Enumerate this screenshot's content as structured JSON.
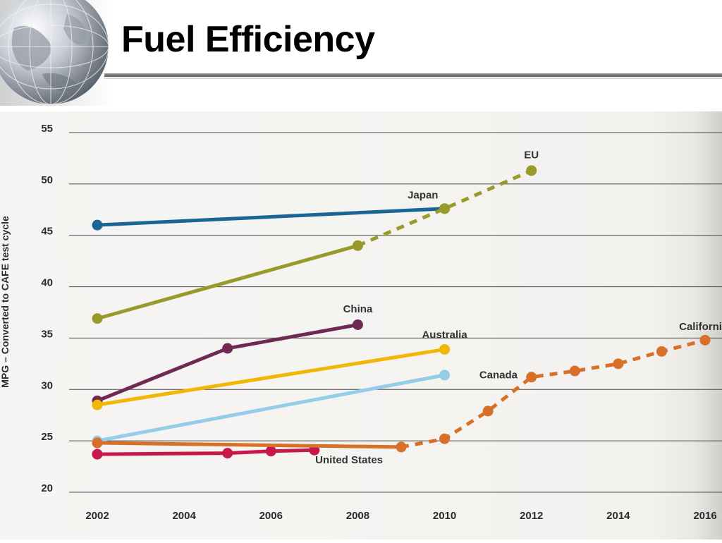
{
  "slide": {
    "title": "Fuel Efficiency"
  },
  "chart_data": {
    "type": "line",
    "title": "",
    "xlabel": "",
    "ylabel": "MPG – Converted to CAFE test cycle",
    "ylim": [
      20,
      55
    ],
    "xlim": [
      2002,
      2016
    ],
    "y_ticks": [
      "20",
      "25",
      "30",
      "35",
      "40",
      "45",
      "50",
      "55"
    ],
    "x_ticks": [
      "2002",
      "2004",
      "2006",
      "2008",
      "2010",
      "2012",
      "2014",
      "2016"
    ],
    "grid": true,
    "series": [
      {
        "name": "Japan",
        "color": "#1a6496",
        "points": [
          [
            2002,
            46.0
          ],
          [
            2010,
            47.6
          ]
        ],
        "dashed_points": []
      },
      {
        "name": "EU",
        "color": "#9a9a2a",
        "points": [
          [
            2002,
            36.9
          ],
          [
            2008,
            44.0
          ]
        ],
        "dashed_points": [
          [
            2008,
            44.0
          ],
          [
            2010,
            47.6
          ],
          [
            2012,
            51.3
          ]
        ]
      },
      {
        "name": "China",
        "color": "#6e2a52",
        "points": [
          [
            2002,
            28.9
          ],
          [
            2005,
            34.0
          ],
          [
            2008,
            36.3
          ]
        ],
        "dashed_points": []
      },
      {
        "name": "Australia",
        "color": "#f2b705",
        "points": [
          [
            2002,
            28.5
          ],
          [
            2010,
            33.9
          ]
        ],
        "dashed_points": []
      },
      {
        "name": "Canada",
        "color": "#95cde8",
        "points": [
          [
            2002,
            25.0
          ],
          [
            2010,
            31.4
          ]
        ],
        "dashed_points": []
      },
      {
        "name": "United States",
        "color": "#c8184a",
        "points": [
          [
            2002,
            23.7
          ],
          [
            2005,
            23.8
          ],
          [
            2006,
            24.0
          ],
          [
            2007,
            24.1
          ]
        ],
        "dashed_points": []
      },
      {
        "name": "California",
        "color": "#d9702a",
        "points": [
          [
            2002,
            24.8
          ],
          [
            2009,
            24.4
          ]
        ],
        "dashed_points": [
          [
            2009,
            24.4
          ],
          [
            2010,
            25.2
          ],
          [
            2011,
            27.9
          ],
          [
            2012,
            31.2
          ],
          [
            2013,
            31.8
          ],
          [
            2014,
            32.5
          ],
          [
            2015,
            33.7
          ],
          [
            2016,
            34.8
          ]
        ]
      }
    ],
    "labels": [
      {
        "text": "Japan",
        "x": 2009.5,
        "y": 48.6
      },
      {
        "text": "EU",
        "x": 2012,
        "y": 52.5
      },
      {
        "text": "China",
        "x": 2008,
        "y": 37.5
      },
      {
        "text": "Australia",
        "x": 2010,
        "y": 35.0
      },
      {
        "text": "Canada",
        "x": 2010.8,
        "y": 31.1
      },
      {
        "text": "United States",
        "x": 2007.8,
        "y": 22.8
      },
      {
        "text": "California",
        "x": 2016.2,
        "y": 35.8
      }
    ]
  }
}
